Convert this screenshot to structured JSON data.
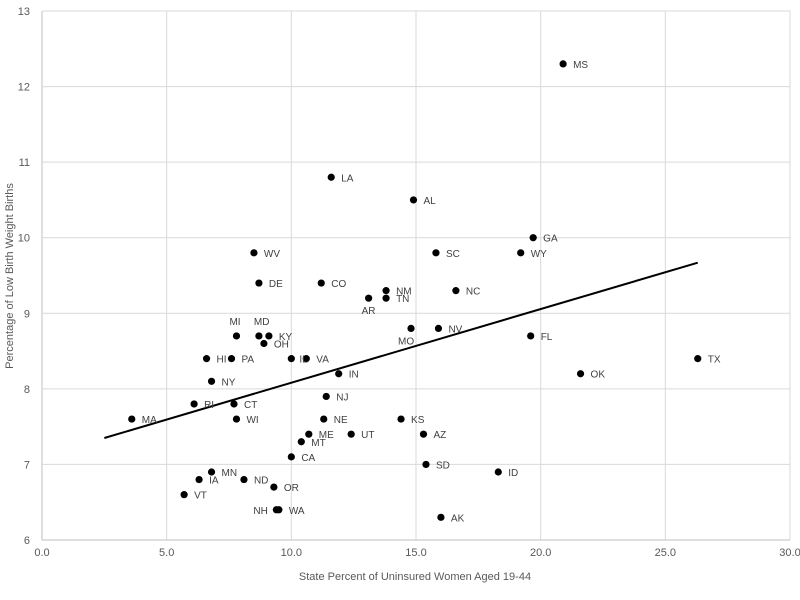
{
  "chart_data": {
    "type": "scatter",
    "title": "",
    "xlabel": "State Percent of Uninsured Women Aged 19-44",
    "ylabel": "Percentage of Low Birth Weight Births",
    "xlim": [
      0,
      30
    ],
    "ylim": [
      6,
      13
    ],
    "xticks": [
      "0.0",
      "5.0",
      "10.0",
      "15.0",
      "20.0",
      "25.0",
      "30.0"
    ],
    "yticks": [
      "6",
      "7",
      "8",
      "9",
      "10",
      "11",
      "12",
      "13"
    ],
    "grid": true,
    "legend": "none",
    "points": [
      {
        "label": "MS",
        "x": 20.9,
        "y": 12.3
      },
      {
        "label": "LA",
        "x": 11.6,
        "y": 10.8
      },
      {
        "label": "AL",
        "x": 14.9,
        "y": 10.5
      },
      {
        "label": "GA",
        "x": 19.7,
        "y": 10.0
      },
      {
        "label": "WV",
        "x": 8.5,
        "y": 9.8
      },
      {
        "label": "SC",
        "x": 15.8,
        "y": 9.8
      },
      {
        "label": "WY",
        "x": 19.2,
        "y": 9.8
      },
      {
        "label": "DE",
        "x": 8.7,
        "y": 9.4
      },
      {
        "label": "CO",
        "x": 11.2,
        "y": 9.4
      },
      {
        "label": "NM",
        "x": 13.8,
        "y": 9.3
      },
      {
        "label": "NC",
        "x": 16.6,
        "y": 9.3
      },
      {
        "label": "AR",
        "x": 13.1,
        "y": 9.2
      },
      {
        "label": "TN",
        "x": 13.8,
        "y": 9.2
      },
      {
        "label": "MO",
        "x": 14.8,
        "y": 8.8
      },
      {
        "label": "NV",
        "x": 15.9,
        "y": 8.8
      },
      {
        "label": "FL",
        "x": 19.6,
        "y": 8.7
      },
      {
        "label": "MI",
        "x": 7.8,
        "y": 8.7
      },
      {
        "label": "MD",
        "x": 8.7,
        "y": 8.7
      },
      {
        "label": "KY",
        "x": 9.1,
        "y": 8.7
      },
      {
        "label": "OH",
        "x": 8.9,
        "y": 8.6
      },
      {
        "label": "HI",
        "x": 6.6,
        "y": 8.4
      },
      {
        "label": "PA",
        "x": 7.6,
        "y": 8.4
      },
      {
        "label": "IL",
        "x": 10.0,
        "y": 8.4
      },
      {
        "label": "VA",
        "x": 10.6,
        "y": 8.4
      },
      {
        "label": "TX",
        "x": 26.3,
        "y": 8.4
      },
      {
        "label": "IN",
        "x": 11.9,
        "y": 8.2
      },
      {
        "label": "OK",
        "x": 21.6,
        "y": 8.2
      },
      {
        "label": "NY",
        "x": 6.8,
        "y": 8.1
      },
      {
        "label": "NJ",
        "x": 11.4,
        "y": 7.9
      },
      {
        "label": "RI",
        "x": 6.1,
        "y": 7.8
      },
      {
        "label": "CT",
        "x": 7.7,
        "y": 7.8
      },
      {
        "label": "MA",
        "x": 3.6,
        "y": 7.6
      },
      {
        "label": "WI",
        "x": 7.8,
        "y": 7.6
      },
      {
        "label": "NE",
        "x": 11.3,
        "y": 7.6
      },
      {
        "label": "KS",
        "x": 14.4,
        "y": 7.6
      },
      {
        "label": "ME",
        "x": 10.7,
        "y": 7.4
      },
      {
        "label": "UT",
        "x": 12.4,
        "y": 7.4
      },
      {
        "label": "AZ",
        "x": 15.3,
        "y": 7.4
      },
      {
        "label": "MT",
        "x": 10.4,
        "y": 7.3
      },
      {
        "label": "CA",
        "x": 10.0,
        "y": 7.1
      },
      {
        "label": "SD",
        "x": 15.4,
        "y": 7.0
      },
      {
        "label": "MN",
        "x": 6.8,
        "y": 6.9
      },
      {
        "label": "ID",
        "x": 18.3,
        "y": 6.9
      },
      {
        "label": "IA",
        "x": 6.3,
        "y": 6.8
      },
      {
        "label": "ND",
        "x": 8.1,
        "y": 6.8
      },
      {
        "label": "OR",
        "x": 9.3,
        "y": 6.7
      },
      {
        "label": "VT",
        "x": 5.7,
        "y": 6.6
      },
      {
        "label": "NH",
        "x": 9.4,
        "y": 6.4
      },
      {
        "label": "WA",
        "x": 9.5,
        "y": 6.4
      },
      {
        "label": "AK",
        "x": 16.0,
        "y": 6.3
      }
    ],
    "trendline": {
      "x": [
        2.5,
        26.3
      ],
      "y": [
        7.35,
        9.67
      ]
    },
    "colors": {
      "marker": "#000000",
      "trendline": "#000000",
      "grid": "#d9d9d9",
      "text": "#595959"
    }
  }
}
